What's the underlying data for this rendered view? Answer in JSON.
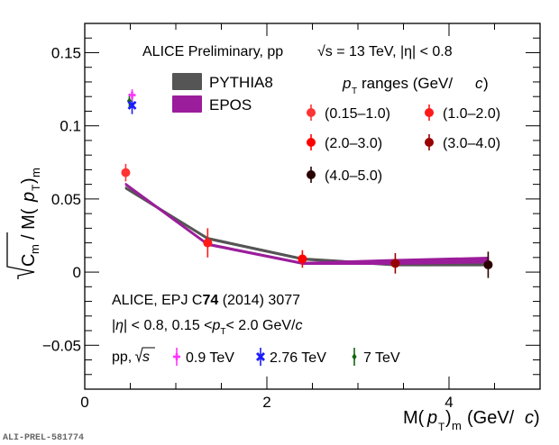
{
  "chart_data": {
    "type": "scatter",
    "title": "ALICE Preliminary, pp",
    "energy_label": "√s = 13 TeV, |η| < 0.8",
    "xlabel": "M(p_T)_m (GeV/c)",
    "ylabel": "√C_m / M(p_T)_m",
    "xlim": [
      0,
      5
    ],
    "ylim": [
      -0.08,
      0.17
    ],
    "x_ticks": [
      0,
      2,
      4
    ],
    "x_tick_labels": [
      "0",
      "2",
      "4"
    ],
    "y_ticks": [
      -0.05,
      0,
      0.05,
      0.1,
      0.15
    ],
    "y_tick_labels": [
      "−0.05",
      "0",
      "0.05",
      "0.1",
      "0.15"
    ],
    "grid": false,
    "legend_pt_title": "p_T ranges (GeV/c)",
    "series": [
      {
        "name": "(0.15–1.0)",
        "color": "#ff3333",
        "x": 0.45,
        "y": 0.068,
        "err": 0.006
      },
      {
        "name": "(1.0–2.0)",
        "color": "#ff1a1a",
        "x": 1.35,
        "y": 0.02,
        "err": 0.01
      },
      {
        "name": "(2.0–3.0)",
        "color": "#ff0000",
        "x": 2.39,
        "y": 0.009,
        "err": 0.006
      },
      {
        "name": "(3.0–4.0)",
        "color": "#990000",
        "x": 3.41,
        "y": 0.006,
        "err": 0.007
      },
      {
        "name": "(4.0–5.0)",
        "color": "#2a0000",
        "x": 4.43,
        "y": 0.005,
        "err": 0.009
      }
    ],
    "models": [
      {
        "name": "PYTHIA8",
        "color": "#555555",
        "x": [
          0.45,
          1.35,
          2.39,
          3.41,
          4.43
        ],
        "y_low": [
          0.057,
          0.0225,
          0.0085,
          0.0045,
          0.0045
        ],
        "y_high": [
          0.058,
          0.0235,
          0.0095,
          0.0055,
          0.0055
        ]
      },
      {
        "name": "EPOS",
        "color": "#9b1d9b",
        "x": [
          0.45,
          1.35,
          2.39,
          3.41,
          4.43
        ],
        "y_low": [
          0.0595,
          0.0185,
          0.0055,
          0.0055,
          0.0065
        ],
        "y_high": [
          0.0605,
          0.0195,
          0.0065,
          0.0085,
          0.01
        ]
      }
    ],
    "reference": {
      "citation_prefix": "ALICE, EPJ C",
      "citation_volume": "74",
      "citation_suffix": " (2014) 3077",
      "cuts": "|η| < 0.8, 0.15 < p_T < 2.0 GeV/c",
      "legend_prefix": "pp, √s",
      "points": [
        {
          "name": "0.9 TeV",
          "color": "#ff33ff",
          "marker": "plus",
          "x": 0.52,
          "y": 0.121,
          "err": 0.004
        },
        {
          "name": "2.76 TeV",
          "color": "#1a1aff",
          "marker": "x",
          "x": 0.52,
          "y": 0.114,
          "err": 0.006
        },
        {
          "name": "7 TeV",
          "color": "#116611",
          "marker": "diamond",
          "x": 0.49,
          "y": 0.117,
          "err": 0.005
        }
      ]
    },
    "watermark": "ALI-PREL-581774"
  }
}
